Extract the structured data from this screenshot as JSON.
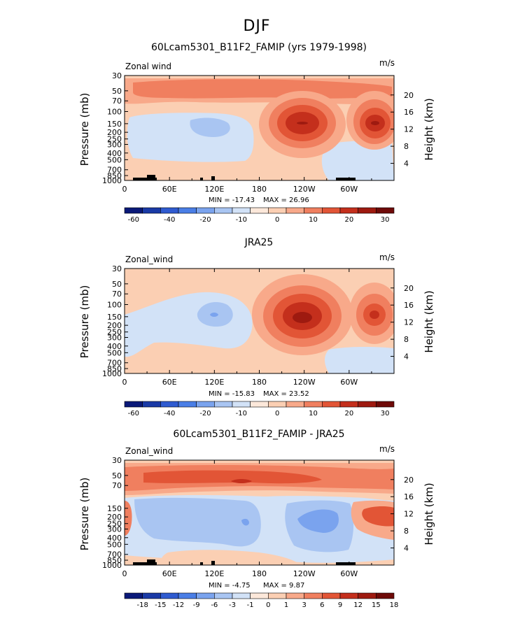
{
  "figure": {
    "season": "DJF"
  },
  "palette": {
    "main": [
      "#0a1978",
      "#1a3aa6",
      "#2f5bd0",
      "#4a7ee6",
      "#7aa3ee",
      "#a9c5f2",
      "#d2e2f7",
      "#fce8da",
      "#fbcfb3",
      "#f8a98a",
      "#f07f5f",
      "#e25536",
      "#c42f1c",
      "#9e1a10",
      "#6e0a08"
    ],
    "diff": [
      "#0a1978",
      "#1a3aa6",
      "#2f5bd0",
      "#4a7ee6",
      "#7aa3ee",
      "#a9c5f2",
      "#d2e2f7",
      "#fce8da",
      "#fbcfb3",
      "#f8a98a",
      "#f07f5f",
      "#e25536",
      "#c42f1c",
      "#9e1a10",
      "#6e0a08"
    ],
    "land": "#000000"
  },
  "chart_data": [
    {
      "type": "heatmap",
      "title": "60Lcam5301_B11F2_FAMIP (yrs 1979-1998)",
      "left_string": "Zonal wind",
      "units": "m/s",
      "ylabel": "Pressure (mb)",
      "ylabel_right": "Height (km)",
      "pressure_ticks": [
        "30",
        "50",
        "70",
        "100",
        "150",
        "200",
        "250",
        "300",
        "400",
        "500",
        "700",
        "850",
        "1000"
      ],
      "height_ticks": [
        "4",
        "8",
        "12",
        "16",
        "20"
      ],
      "x_ticks": [
        "0",
        "60E",
        "120E",
        "180",
        "120W",
        "60W"
      ],
      "xlim": [
        0,
        360
      ],
      "min_label": "MIN = -17.43",
      "max_label": "MAX = 26.96",
      "stats": {
        "min": -17.43,
        "max": 26.96
      },
      "colorbar_labels": [
        "-60",
        "-40",
        "-20",
        "-10",
        "0",
        "10",
        "20",
        "30"
      ],
      "colorbar_levels": [
        -60,
        -50,
        -40,
        -30,
        -20,
        -15,
        -10,
        -5,
        0,
        5,
        10,
        15,
        20,
        25,
        30
      ],
      "jets": [
        {
          "lon": 110,
          "p": 150,
          "peak": -17
        },
        {
          "lon": 230,
          "p": 150,
          "peak": 27
        },
        {
          "lon": 340,
          "p": 150,
          "peak": 26
        }
      ]
    },
    {
      "type": "heatmap",
      "title": "JRA25",
      "left_string": "Zonal_wind",
      "units": "m/s",
      "ylabel": "Pressure (mb)",
      "ylabel_right": "Height (km)",
      "pressure_ticks": [
        "30",
        "50",
        "70",
        "100",
        "150",
        "200",
        "250",
        "300",
        "400",
        "500",
        "700",
        "850",
        "1000"
      ],
      "height_ticks": [
        "4",
        "8",
        "12",
        "16",
        "20"
      ],
      "x_ticks": [
        "0",
        "60E",
        "120E",
        "180",
        "120W",
        "60W"
      ],
      "xlim": [
        0,
        360
      ],
      "min_label": "MIN = -15.83",
      "max_label": "MAX = 23.52",
      "stats": {
        "min": -15.83,
        "max": 23.52
      },
      "colorbar_labels": [
        "-60",
        "-40",
        "-20",
        "-10",
        "0",
        "10",
        "20",
        "30"
      ],
      "colorbar_levels": [
        -60,
        -50,
        -40,
        -30,
        -20,
        -15,
        -10,
        -5,
        0,
        5,
        10,
        15,
        20,
        25,
        30
      ],
      "jets": [
        {
          "lon": 120,
          "p": 150,
          "peak": -16
        },
        {
          "lon": 240,
          "p": 150,
          "peak": 24
        },
        {
          "lon": 335,
          "p": 150,
          "peak": 20
        }
      ]
    },
    {
      "type": "heatmap",
      "title": "60Lcam5301_B11F2_FAMIP - JRA25",
      "left_string": "Zonal_wind",
      "units": "m/s",
      "ylabel": "Pressure (mb)",
      "ylabel_right": "Height (km)",
      "pressure_ticks": [
        "30",
        "50",
        "70",
        "150",
        "200",
        "250",
        "300",
        "400",
        "500",
        "700",
        "850",
        "1000"
      ],
      "height_ticks": [
        "4",
        "8",
        "12",
        "16",
        "20"
      ],
      "x_ticks": [
        "0",
        "60E",
        "120E",
        "180",
        "120W",
        "60W"
      ],
      "xlim": [
        0,
        360
      ],
      "min_label": "MIN = -4.75",
      "max_label": "MAX = 9.87",
      "stats": {
        "min": -4.75,
        "max": 9.87
      },
      "colorbar_labels": [
        "-18",
        "-15",
        "-12",
        "-9",
        "-6",
        "-3",
        "-1",
        "0",
        "1",
        "3",
        "6",
        "9",
        "12",
        "15",
        "18"
      ],
      "colorbar_levels": [
        -18,
        -15,
        -12,
        -9,
        -6,
        -3,
        -1,
        0,
        1,
        3,
        6,
        9,
        12,
        15,
        18
      ]
    }
  ]
}
